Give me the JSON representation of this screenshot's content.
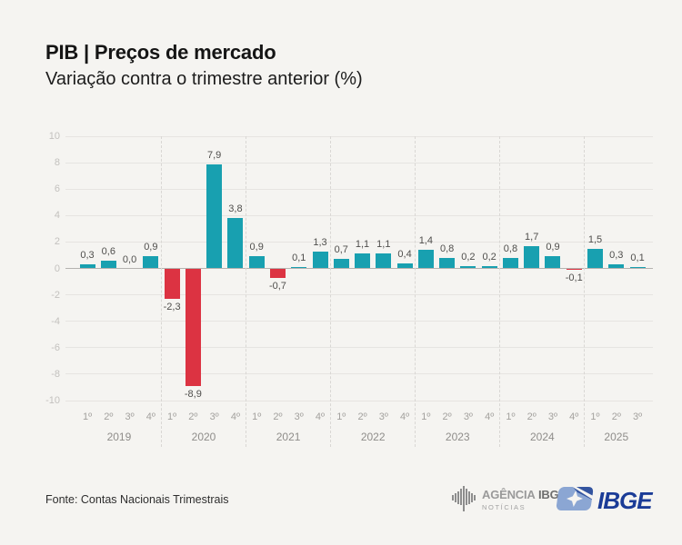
{
  "header": {
    "title": "PIB | Preços de mercado",
    "subtitle": "Variação contra o trimestre anterior (%)"
  },
  "chart_data": {
    "type": "bar",
    "title": "PIB | Preços de mercado",
    "subtitle": "Variação contra o trimestre anterior (%)",
    "ylabel": "",
    "xlabel": "",
    "ylim": [
      -10,
      10
    ],
    "yticks": [
      10,
      8,
      6,
      4,
      2,
      0,
      -2,
      -4,
      -6,
      -8,
      -10
    ],
    "grid": "horizontal-solid-plus-year-dashed-separators",
    "legend": "none",
    "value_label_decimal_separator": ",",
    "groups": [
      {
        "year": "2019",
        "quarters": [
          "1º",
          "2º",
          "3º",
          "4º"
        ],
        "values": [
          0.3,
          0.6,
          0.0,
          0.9
        ]
      },
      {
        "year": "2020",
        "quarters": [
          "1º",
          "2º",
          "3º",
          "4º"
        ],
        "values": [
          -2.3,
          -8.9,
          7.9,
          3.8
        ]
      },
      {
        "year": "2021",
        "quarters": [
          "1º",
          "2º",
          "3º",
          "4º"
        ],
        "values": [
          0.9,
          -0.7,
          0.1,
          1.3
        ]
      },
      {
        "year": "2022",
        "quarters": [
          "1º",
          "2º",
          "3º",
          "4º"
        ],
        "values": [
          0.7,
          1.1,
          1.1,
          0.4
        ]
      },
      {
        "year": "2023",
        "quarters": [
          "1º",
          "2º",
          "3º",
          "4º"
        ],
        "values": [
          1.4,
          0.8,
          0.2,
          0.2
        ]
      },
      {
        "year": "2024",
        "quarters": [
          "1º",
          "2º",
          "3º",
          "4º"
        ],
        "values": [
          0.8,
          1.7,
          0.9,
          -0.1
        ]
      },
      {
        "year": "2025",
        "quarters": [
          "1º",
          "2º",
          "3º"
        ],
        "values": [
          1.5,
          0.3,
          0.1
        ]
      }
    ],
    "positive_color": "#18a0b0",
    "negative_color": "#dc3342"
  },
  "footer": {
    "source": "Fonte: Contas Nacionais Trimestrais",
    "agencia_logo": {
      "line1_light": "AGÊNCIA",
      "line1_bold": "IBGE",
      "line2": "NOTÍCIAS"
    },
    "ibge_logo": {
      "text": "IBGE"
    }
  },
  "colors": {
    "background": "#f5f4f1",
    "positive_bar": "#18a0b0",
    "negative_bar": "#dc3342",
    "ibge_blue_dark": "#1b3c97",
    "ibge_blue_light": "#8ba6d3"
  }
}
